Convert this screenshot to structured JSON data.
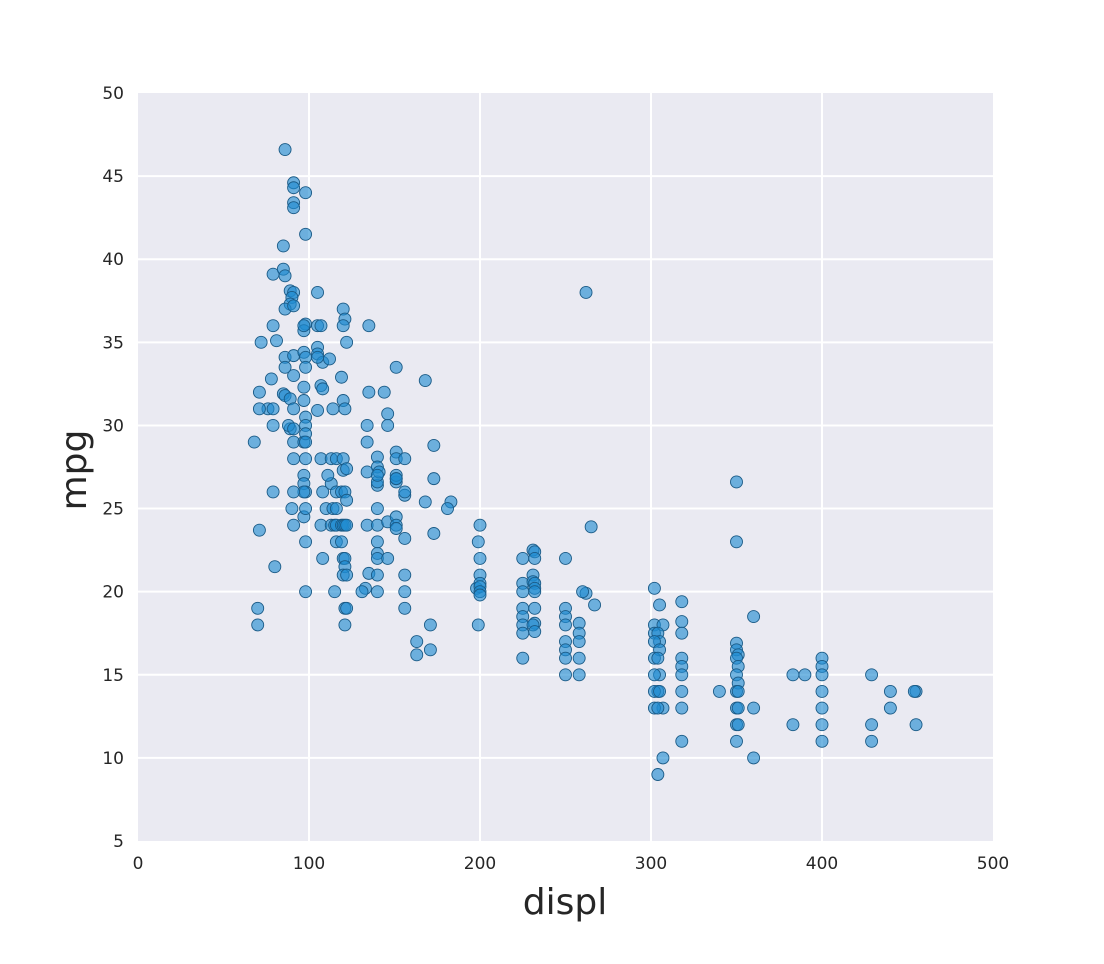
{
  "chart_data": {
    "type": "scatter",
    "title": "",
    "xlabel": "displ",
    "ylabel": "mpg",
    "xlim": [
      0,
      500
    ],
    "ylim": [
      5,
      50
    ],
    "xticks": [
      "0",
      "100",
      "200",
      "300",
      "400",
      "500"
    ],
    "yticks": [
      "5",
      "10",
      "15",
      "20",
      "25",
      "30",
      "35",
      "40",
      "45",
      "50"
    ],
    "grid": true,
    "legend": "none",
    "colors": {
      "background": "#eaeaf2",
      "grid": "#ffffff",
      "point_fill": "#1f8bd1",
      "point_edge": "#1a5a86",
      "text": "#262626"
    },
    "points": [
      [
        86,
        46.6
      ],
      [
        91,
        44.6
      ],
      [
        91,
        44.3
      ],
      [
        91,
        43.4
      ],
      [
        91,
        43.1
      ],
      [
        98,
        44.0
      ],
      [
        98,
        41.5
      ],
      [
        85,
        40.8
      ],
      [
        79,
        39.1
      ],
      [
        85,
        39.4
      ],
      [
        86,
        39.0
      ],
      [
        89,
        38.1
      ],
      [
        91,
        38.0
      ],
      [
        90,
        37.7
      ],
      [
        89,
        37.3
      ],
      [
        86,
        37.0
      ],
      [
        91,
        37.2
      ],
      [
        98,
        36.1
      ],
      [
        97,
        35.7
      ],
      [
        97,
        36.0
      ],
      [
        105,
        36.0
      ],
      [
        107,
        36.0
      ],
      [
        105,
        38.0
      ],
      [
        120,
        37.0
      ],
      [
        121,
        36.4
      ],
      [
        120,
        36.0
      ],
      [
        122,
        35.0
      ],
      [
        135,
        36.0
      ],
      [
        262,
        38.0
      ],
      [
        72,
        35.0
      ],
      [
        81,
        35.1
      ],
      [
        79,
        36.0
      ],
      [
        86,
        34.1
      ],
      [
        91,
        34.2
      ],
      [
        97,
        34.4
      ],
      [
        98,
        34.1
      ],
      [
        105,
        34.7
      ],
      [
        105,
        34.3
      ],
      [
        108,
        33.8
      ],
      [
        112,
        34.0
      ],
      [
        105,
        34.1
      ],
      [
        91,
        33.0
      ],
      [
        98,
        33.5
      ],
      [
        86,
        33.5
      ],
      [
        97,
        32.3
      ],
      [
        107,
        32.4
      ],
      [
        108,
        32.2
      ],
      [
        119,
        32.9
      ],
      [
        135,
        32.0
      ],
      [
        151,
        33.5
      ],
      [
        144,
        32.0
      ],
      [
        168,
        32.7
      ],
      [
        78,
        32.8
      ],
      [
        71,
        32.0
      ],
      [
        85,
        31.9
      ],
      [
        86,
        31.8
      ],
      [
        89,
        31.6
      ],
      [
        91,
        31.0
      ],
      [
        97,
        31.5
      ],
      [
        105,
        30.9
      ],
      [
        114,
        31.0
      ],
      [
        120,
        31.5
      ],
      [
        121,
        31.0
      ],
      [
        76,
        31.0
      ],
      [
        79,
        31.0
      ],
      [
        71,
        31.0
      ],
      [
        98,
        30.5
      ],
      [
        98,
        30.0
      ],
      [
        89,
        29.8
      ],
      [
        91,
        29.0
      ],
      [
        97,
        29.0
      ],
      [
        98,
        29.5
      ],
      [
        98,
        29.0
      ],
      [
        98,
        28.0
      ],
      [
        107,
        28.0
      ],
      [
        113,
        28.0
      ],
      [
        116,
        28.0
      ],
      [
        120,
        28.0
      ],
      [
        91,
        28.0
      ],
      [
        134,
        30.0
      ],
      [
        134,
        29.0
      ],
      [
        146,
        30.7
      ],
      [
        146,
        30.0
      ],
      [
        79,
        30.0
      ],
      [
        68,
        29.0
      ],
      [
        88,
        30.0
      ],
      [
        91,
        29.8
      ],
      [
        140,
        28.1
      ],
      [
        140,
        27.5
      ],
      [
        151,
        28.4
      ],
      [
        151,
        28.0
      ],
      [
        156,
        28.0
      ],
      [
        173,
        28.8
      ],
      [
        97,
        27.0
      ],
      [
        97,
        26.5
      ],
      [
        98,
        26.0
      ],
      [
        97,
        26.0
      ],
      [
        79,
        26.0
      ],
      [
        91,
        26.0
      ],
      [
        108,
        26.0
      ],
      [
        113,
        26.5
      ],
      [
        116,
        26.0
      ],
      [
        119,
        26.0
      ],
      [
        121,
        26.0
      ],
      [
        122,
        25.5
      ],
      [
        140,
        26.4
      ],
      [
        140,
        26.6
      ],
      [
        151,
        26.6
      ],
      [
        151,
        26.8
      ],
      [
        156,
        25.8
      ],
      [
        156,
        26.0
      ],
      [
        173,
        26.8
      ],
      [
        168,
        25.4
      ],
      [
        183,
        25.4
      ],
      [
        181,
        25.0
      ],
      [
        134,
        27.2
      ],
      [
        141,
        27.2
      ],
      [
        140,
        27.0
      ],
      [
        151,
        27.0
      ],
      [
        151,
        26.8
      ],
      [
        111,
        27.0
      ],
      [
        120,
        27.3
      ],
      [
        122,
        27.4
      ],
      [
        110,
        25.0
      ],
      [
        114,
        25.0
      ],
      [
        116,
        25.0
      ],
      [
        97,
        24.5
      ],
      [
        98,
        25.0
      ],
      [
        90,
        25.0
      ],
      [
        91,
        24.0
      ],
      [
        71,
        23.7
      ],
      [
        98,
        23.0
      ],
      [
        107,
        24.0
      ],
      [
        113,
        24.0
      ],
      [
        115,
        24.0
      ],
      [
        116,
        24.0
      ],
      [
        119,
        24.0
      ],
      [
        120,
        24.0
      ],
      [
        121,
        24.0
      ],
      [
        122,
        24.0
      ],
      [
        134,
        24.0
      ],
      [
        140,
        24.0
      ],
      [
        146,
        24.2
      ],
      [
        151,
        24.5
      ],
      [
        151,
        24.0
      ],
      [
        151,
        23.8
      ],
      [
        156,
        23.2
      ],
      [
        173,
        23.5
      ],
      [
        200,
        24.0
      ],
      [
        199,
        23.0
      ],
      [
        140,
        25.0
      ],
      [
        140,
        23.0
      ],
      [
        140,
        22.3
      ],
      [
        140,
        22.0
      ],
      [
        146,
        22.0
      ],
      [
        120,
        22.0
      ],
      [
        121,
        22.0
      ],
      [
        121,
        21.5
      ],
      [
        120,
        21.0
      ],
      [
        122,
        21.0
      ],
      [
        116,
        23.0
      ],
      [
        119,
        23.0
      ],
      [
        108,
        22.0
      ],
      [
        80,
        21.5
      ],
      [
        200,
        22.0
      ],
      [
        225,
        22.0
      ],
      [
        231,
        22.5
      ],
      [
        232,
        22.4
      ],
      [
        232,
        22.0
      ],
      [
        250,
        22.0
      ],
      [
        265,
        23.9
      ],
      [
        350,
        23.0
      ],
      [
        350,
        26.6
      ],
      [
        135,
        21.1
      ],
      [
        140,
        21.0
      ],
      [
        156,
        21.0
      ],
      [
        198,
        20.2
      ],
      [
        200,
        21.0
      ],
      [
        200,
        20.5
      ],
      [
        200,
        20.3
      ],
      [
        200,
        20.0
      ],
      [
        200,
        19.8
      ],
      [
        225,
        20.5
      ],
      [
        225,
        20.0
      ],
      [
        231,
        21.0
      ],
      [
        231,
        20.6
      ],
      [
        232,
        20.5
      ],
      [
        232,
        20.2
      ],
      [
        232,
        20.0
      ],
      [
        140,
        20.0
      ],
      [
        133,
        20.2
      ],
      [
        131,
        20.0
      ],
      [
        156,
        20.0
      ],
      [
        115,
        20.0
      ],
      [
        98,
        20.0
      ],
      [
        250,
        19.0
      ],
      [
        225,
        19.0
      ],
      [
        225,
        18.5
      ],
      [
        232,
        19.0
      ],
      [
        232,
        18.1
      ],
      [
        225,
        18.0
      ],
      [
        250,
        18.5
      ],
      [
        258,
        18.1
      ],
      [
        258,
        17.5
      ],
      [
        262,
        19.9
      ],
      [
        260,
        20.0
      ],
      [
        250,
        18.0
      ],
      [
        267,
        19.2
      ],
      [
        231,
        18.0
      ],
      [
        121,
        19.0
      ],
      [
        122,
        19.0
      ],
      [
        156,
        19.0
      ],
      [
        70,
        19.0
      ],
      [
        70,
        18.0
      ],
      [
        121,
        18.0
      ],
      [
        171,
        18.0
      ],
      [
        199,
        18.0
      ],
      [
        225,
        17.5
      ],
      [
        232,
        17.6
      ],
      [
        250,
        17.0
      ],
      [
        250,
        16.5
      ],
      [
        258,
        17.0
      ],
      [
        225,
        16.0
      ],
      [
        250,
        16.0
      ],
      [
        258,
        16.0
      ],
      [
        302,
        20.2
      ],
      [
        305,
        19.2
      ],
      [
        318,
        19.4
      ],
      [
        302,
        18.0
      ],
      [
        307,
        18.0
      ],
      [
        318,
        18.2
      ],
      [
        318,
        17.5
      ],
      [
        360,
        18.5
      ],
      [
        302,
        17.5
      ],
      [
        304,
        17.5
      ],
      [
        305,
        17.0
      ],
      [
        302,
        17.0
      ],
      [
        305,
        16.5
      ],
      [
        350,
        16.9
      ],
      [
        350,
        16.5
      ],
      [
        351,
        16.2
      ],
      [
        163,
        17.0
      ],
      [
        171,
        16.5
      ],
      [
        163,
        16.2
      ],
      [
        302,
        16.0
      ],
      [
        304,
        16.0
      ],
      [
        318,
        16.0
      ],
      [
        318,
        15.5
      ],
      [
        350,
        16.0
      ],
      [
        351,
        15.5
      ],
      [
        400,
        16.0
      ],
      [
        400,
        15.5
      ],
      [
        400,
        15.0
      ],
      [
        383,
        15.0
      ],
      [
        390,
        15.0
      ],
      [
        429,
        15.0
      ],
      [
        350,
        15.0
      ],
      [
        351,
        14.5
      ],
      [
        305,
        15.0
      ],
      [
        302,
        15.0
      ],
      [
        318,
        15.0
      ],
      [
        250,
        15.0
      ],
      [
        258,
        15.0
      ],
      [
        455,
        14.0
      ],
      [
        454,
        14.0
      ],
      [
        440,
        14.0
      ],
      [
        400,
        14.0
      ],
      [
        350,
        14.0
      ],
      [
        351,
        14.0
      ],
      [
        340,
        14.0
      ],
      [
        318,
        14.0
      ],
      [
        304,
        14.0
      ],
      [
        302,
        14.0
      ],
      [
        305,
        14.0
      ],
      [
        307,
        13.0
      ],
      [
        302,
        13.0
      ],
      [
        304,
        13.0
      ],
      [
        318,
        13.0
      ],
      [
        350,
        13.0
      ],
      [
        351,
        13.0
      ],
      [
        360,
        13.0
      ],
      [
        400,
        13.0
      ],
      [
        440,
        13.0
      ],
      [
        455,
        12.0
      ],
      [
        429,
        12.0
      ],
      [
        400,
        12.0
      ],
      [
        383,
        12.0
      ],
      [
        350,
        12.0
      ],
      [
        351,
        12.0
      ],
      [
        318,
        11.0
      ],
      [
        350,
        11.0
      ],
      [
        400,
        11.0
      ],
      [
        429,
        11.0
      ],
      [
        307,
        10.0
      ],
      [
        360,
        10.0
      ],
      [
        304,
        9.0
      ]
    ]
  }
}
